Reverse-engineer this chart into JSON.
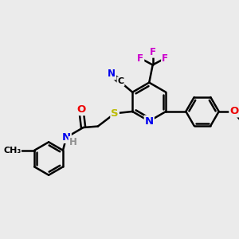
{
  "bg_color": "#ebebeb",
  "bond_color": "#000000",
  "bond_width": 1.8,
  "atom_colors": {
    "N_blue": "#0000ee",
    "O_red": "#ee0000",
    "S_yellow": "#bbbb00",
    "F_magenta": "#cc00cc",
    "H_gray": "#909090"
  },
  "font_size": 8.5,
  "figsize": [
    3.0,
    3.0
  ],
  "dpi": 100,
  "xlim": [
    0,
    10
  ],
  "ylim": [
    0,
    10
  ]
}
